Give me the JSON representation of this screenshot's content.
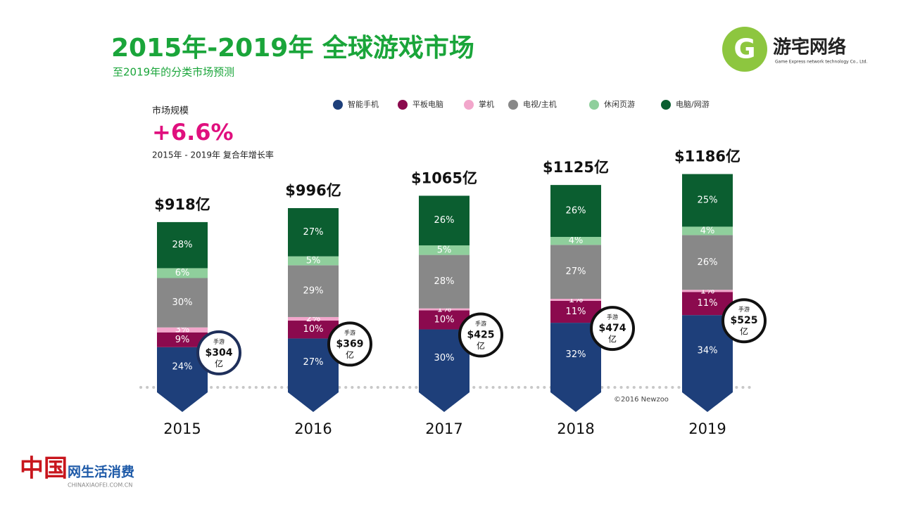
{
  "header": {
    "title": "2015年-2019年 全球游戏市场",
    "subtitle": "至2019年的分类市场预测"
  },
  "logo": {
    "name": "游宅网络",
    "tagline": "Game Express network technology Co., Ltd."
  },
  "summary": {
    "label": "市场规模",
    "growth": "+6.6%",
    "caption": "2015年 - 2019年 复合年增长率"
  },
  "source": "©2016 Newzoo",
  "footer": {
    "brand_char": "中国",
    "brand": "网生活消费",
    "url": "CHINAXIAOFEI.COM.CN"
  },
  "chart_data": {
    "type": "stacked_bar",
    "categories": [
      "2015",
      "2016",
      "2017",
      "2018",
      "2019"
    ],
    "series": [
      {
        "name": "智能手机",
        "color": "#1e3f7a",
        "values": [
          24,
          27,
          30,
          32,
          34
        ],
        "value_labels": [
          "24%",
          "27%",
          "30%",
          "32%",
          "34%"
        ]
      },
      {
        "name": "平板电脑",
        "color": "#8b0a4e",
        "values": [
          9,
          10,
          10,
          11,
          11
        ],
        "value_labels": [
          "9%",
          "10%",
          "10%",
          "11%",
          "11%"
        ]
      },
      {
        "name": "掌机",
        "color": "#f2a6cb",
        "values": [
          3,
          2,
          1,
          1,
          1
        ],
        "value_labels": [
          "3%",
          "2%",
          "1%",
          "1%",
          "1%"
        ]
      },
      {
        "name": "电视/主机",
        "color": "#888888",
        "values": [
          30,
          29,
          28,
          27,
          26
        ],
        "value_labels": [
          "30%",
          "29%",
          "28%",
          "27%",
          "26%"
        ]
      },
      {
        "name": "休闲页游",
        "color": "#8fcf9c",
        "values": [
          6,
          5,
          5,
          4,
          4
        ],
        "value_labels": [
          "6%",
          "5%",
          "5%",
          "4%",
          "4%"
        ]
      },
      {
        "name": "电脑/网游",
        "color": "#0b5e30",
        "values": [
          28,
          27,
          26,
          26,
          25
        ],
        "value_labels": [
          "28%",
          "27%",
          "26%",
          "26%",
          "25%"
        ]
      }
    ],
    "totals": {
      "values": [
        918,
        996,
        1065,
        1125,
        1186
      ],
      "value_labels": [
        "$918亿",
        "$996亿",
        "$1065亿",
        "$1125亿",
        "$1186亿"
      ]
    },
    "mobile": {
      "label": "手游",
      "unit": "亿",
      "values": [
        304,
        369,
        425,
        474,
        525
      ],
      "value_labels": [
        "$304",
        "$369",
        "$425",
        "$474",
        "$525"
      ]
    }
  }
}
